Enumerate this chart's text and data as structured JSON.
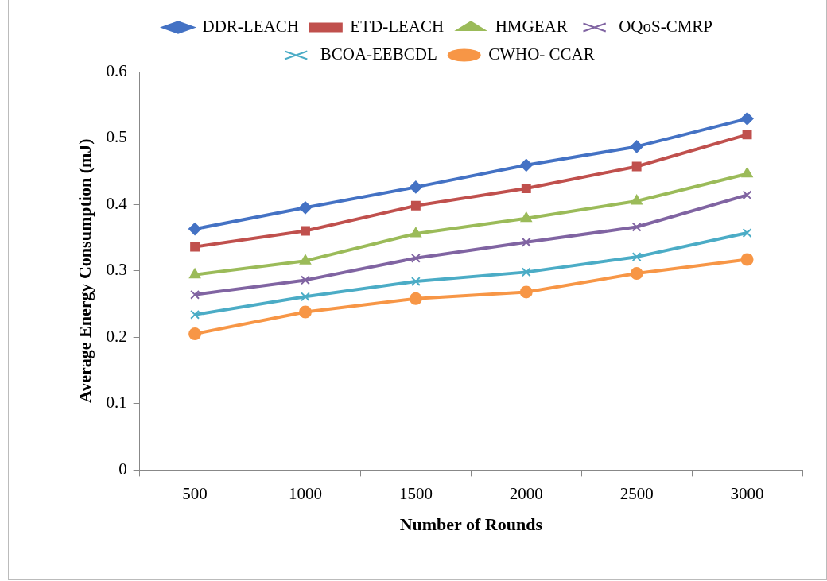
{
  "chart_data": {
    "type": "line",
    "xlabel": "Number of Rounds",
    "ylabel": "Average Energy Consumption (mJ)",
    "categories": [
      "500",
      "1000",
      "1500",
      "2000",
      "2500",
      "3000"
    ],
    "series": [
      {
        "name": "DDR-LEACH",
        "color": "#4472c4",
        "marker": "diamond",
        "values": [
          0.363,
          0.395,
          0.426,
          0.459,
          0.487,
          0.529
        ]
      },
      {
        "name": "ETD-LEACH",
        "color": "#c0504d",
        "marker": "square",
        "values": [
          0.336,
          0.36,
          0.398,
          0.424,
          0.457,
          0.505
        ]
      },
      {
        "name": "HMGEAR",
        "color": "#9bbb59",
        "marker": "triangle",
        "values": [
          0.294,
          0.315,
          0.356,
          0.379,
          0.405,
          0.446
        ]
      },
      {
        "name": "OQoS-CMRP",
        "color": "#8064a2",
        "marker": "cross",
        "values": [
          0.264,
          0.286,
          0.319,
          0.343,
          0.366,
          0.414
        ]
      },
      {
        "name": "BCOA-EEBCDL",
        "color": "#4bacc6",
        "marker": "cross",
        "values": [
          0.234,
          0.261,
          0.284,
          0.298,
          0.321,
          0.357
        ]
      },
      {
        "name": "CWHO- CCAR",
        "color": "#f79646",
        "marker": "circle",
        "values": [
          0.205,
          0.238,
          0.258,
          0.268,
          0.296,
          0.317
        ]
      }
    ],
    "ylim": [
      0,
      0.6
    ],
    "yticks": [
      0,
      0.1,
      0.2,
      0.3,
      0.4,
      0.5,
      0.6
    ],
    "grid": false,
    "legend": "top",
    "line_style": "solid"
  }
}
